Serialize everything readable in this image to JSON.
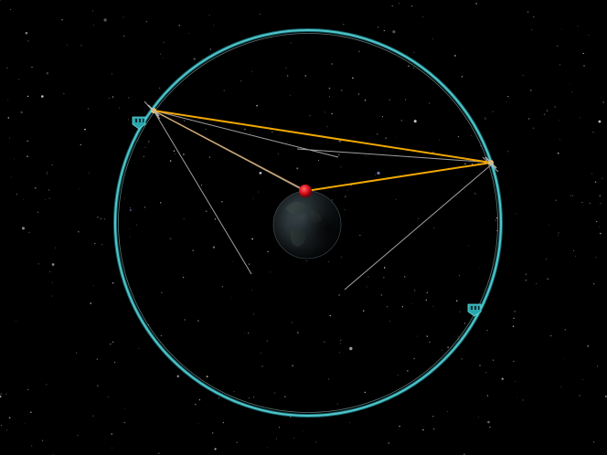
{
  "scene": {
    "view": "orbital-map",
    "background_color": "#000000",
    "orbit_color": "#3fb9bd",
    "link_color": "#f0a800",
    "thin_line_color": "#c8c8c8",
    "ground_station_color": "#e01818",
    "orbit_markers": [
      {
        "name": "orbit-marker-ap",
        "icon": "apoapsis-marker-icon"
      },
      {
        "name": "orbit-marker-pe",
        "icon": "periapsis-marker-icon"
      }
    ]
  }
}
